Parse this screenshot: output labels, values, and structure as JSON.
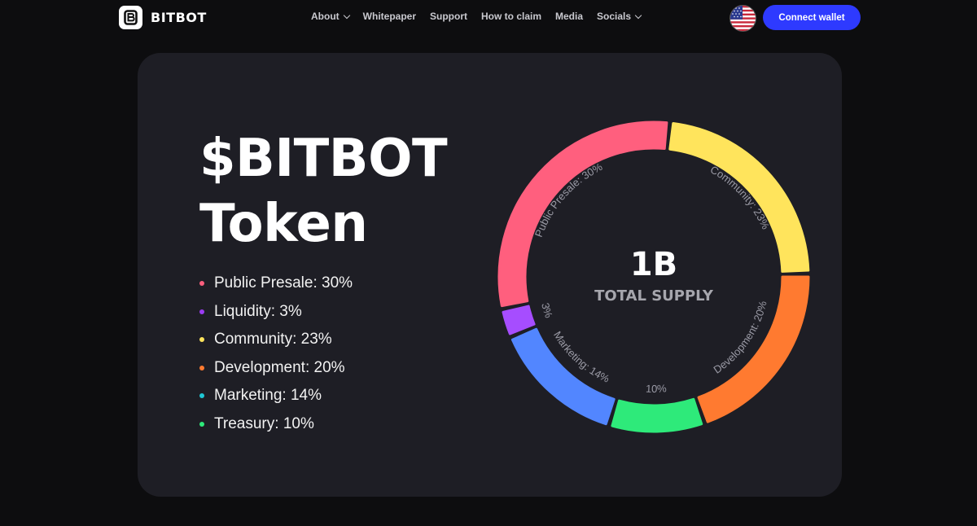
{
  "header": {
    "logo_text": "BITBOT",
    "nav": [
      {
        "label": "About",
        "dropdown": true
      },
      {
        "label": "Whitepaper",
        "dropdown": false
      },
      {
        "label": "Support",
        "dropdown": false
      },
      {
        "label": "How to claim",
        "dropdown": false
      },
      {
        "label": "Media",
        "dropdown": false
      },
      {
        "label": "Socials",
        "dropdown": true
      }
    ],
    "language_icon": "us-flag-icon",
    "connect_label": "Connect wallet",
    "accent": "#2e3aff"
  },
  "hero": {
    "title_line1": "$BITBOT",
    "title_line2": "Token"
  },
  "legend": [
    {
      "label": "Public Presale: 30%",
      "color": "#ff5f7e"
    },
    {
      "label": "Liquidity: 3%",
      "color": "#9b3cf2"
    },
    {
      "label": "Community: 23%",
      "color": "#ffe45c"
    },
    {
      "label": "Development: 20%",
      "color": "#ff7a30"
    },
    {
      "label": "Marketing: 14%",
      "color": "#1fc7d4"
    },
    {
      "label": "Treasury: 10%",
      "color": "#2eea7a"
    }
  ],
  "chart_data": {
    "type": "pie",
    "center_value": "1B",
    "center_label": "TOTAL SUPPLY",
    "slices": [
      {
        "name": "Public Presale",
        "value": 30,
        "label": "Public Presale: 30%",
        "color": "#ff5f7e"
      },
      {
        "name": "Community",
        "value": 23,
        "label": "Community: 23%",
        "color": "#ffe45c"
      },
      {
        "name": "Development",
        "value": 20,
        "label": "Development: 20%",
        "color": "#ff7a30"
      },
      {
        "name": "Treasury",
        "value": 10,
        "label": "10%",
        "color": "#2eea7a"
      },
      {
        "name": "Marketing",
        "value": 14,
        "label": "Marketing: 14%",
        "color": "#5286ff"
      },
      {
        "name": "Liquidity",
        "value": 3,
        "label": "3%",
        "color": "#a64dff"
      }
    ]
  }
}
